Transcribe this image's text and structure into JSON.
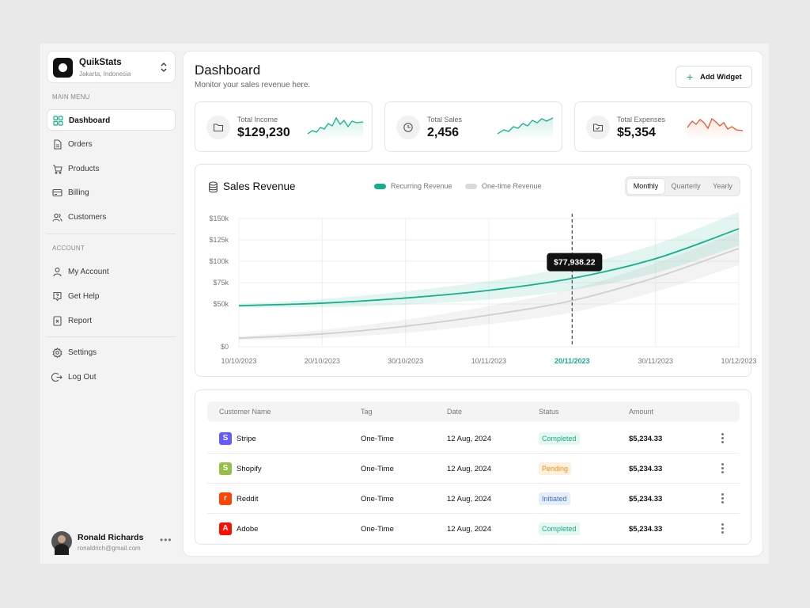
{
  "brand": {
    "name": "QuikStats",
    "location": "Jakarta, Indonesia"
  },
  "sidebar": {
    "main_menu_label": "MAIN MENU",
    "main_items": [
      {
        "label": "Dashboard",
        "icon": "grid-icon",
        "active": true
      },
      {
        "label": "Orders",
        "icon": "document-icon"
      },
      {
        "label": "Products",
        "icon": "cart-icon"
      },
      {
        "label": "Billing",
        "icon": "card-icon"
      },
      {
        "label": "Customers",
        "icon": "users-icon"
      }
    ],
    "account_label": "ACCOUNT",
    "account_items": [
      {
        "label": "My Account",
        "icon": "user-icon"
      },
      {
        "label": "Get Help",
        "icon": "help-icon"
      },
      {
        "label": "Report",
        "icon": "report-icon"
      }
    ],
    "settings_label": "Settings",
    "logout_label": "Log Out"
  },
  "user": {
    "name": "Ronald Richards",
    "email": "ronaldrich@gmail.com"
  },
  "header": {
    "title": "Dashboard",
    "subtitle": "Monitor your sales revenue here.",
    "add_widget_label": "Add Widget"
  },
  "stats": [
    {
      "label": "Total Income",
      "value": "$129,230",
      "icon": "folder-icon",
      "color": "#13b08a"
    },
    {
      "label": "Total Sales",
      "value": "2,456",
      "icon": "pie-icon",
      "color": "#13b08a"
    },
    {
      "label": "Total Expenses",
      "value": "$5,354",
      "icon": "wallet-icon",
      "color": "#e4572e"
    }
  ],
  "chart": {
    "title": "Sales Revenue",
    "legend": [
      {
        "label": "Recurring Revenue",
        "color": "#13b08a"
      },
      {
        "label": "One-time Revenue",
        "color": "#d9d9d9"
      }
    ],
    "periods": [
      "Monthly",
      "Quarterly",
      "Yearly"
    ],
    "active_period": "Monthly",
    "tooltip": "$77,938.22",
    "highlight_date": "20/11/2023"
  },
  "chart_data": {
    "type": "line",
    "title": "Sales Revenue",
    "x": [
      "10/10/2023",
      "20/10/2023",
      "30/10/2023",
      "10/11/2023",
      "20/11/2023",
      "30/11/2023",
      "10/12/2023"
    ],
    "y_ticks": [
      "$0",
      "$50k",
      "$75k",
      "$100k",
      "$125k",
      "$150k"
    ],
    "ylim": [
      0,
      150000
    ],
    "series": [
      {
        "name": "Recurring Revenue",
        "values": [
          48000,
          51000,
          57000,
          66000,
          80000,
          103000,
          138000
        ]
      },
      {
        "name": "One-time Revenue",
        "values": [
          10000,
          15000,
          24000,
          37000,
          54000,
          81000,
          115000
        ]
      }
    ]
  },
  "table": {
    "columns": [
      "Customer Name",
      "Tag",
      "Date",
      "Status",
      "Amount"
    ],
    "rows": [
      {
        "name": "Stripe",
        "logo": "S",
        "logo_color": "#635bff",
        "tag": "One-Time",
        "date": "12 Aug, 2024",
        "status": "Completed",
        "amount": "$5,234.33"
      },
      {
        "name": "Shopify",
        "logo": "S",
        "logo_color": "#95bf47",
        "tag": "One-Time",
        "date": "12 Aug, 2024",
        "status": "Pending",
        "amount": "$5,234.33"
      },
      {
        "name": "Reddit",
        "logo": "r",
        "logo_color": "#ff4500",
        "tag": "One-Time",
        "date": "12 Aug, 2024",
        "status": "Initiated",
        "amount": "$5,234.33"
      },
      {
        "name": "Adobe",
        "logo": "A",
        "logo_color": "#fa0f00",
        "tag": "One-Time",
        "date": "12 Aug, 2024",
        "status": "Completed",
        "amount": "$5,234.33"
      }
    ],
    "status_colors": {
      "Completed": {
        "bg": "#e6f7f1",
        "fg": "#13b08a"
      },
      "Pending": {
        "bg": "#fdf0dc",
        "fg": "#e8941a"
      },
      "Initiated": {
        "bg": "#e6eefb",
        "fg": "#3a72d8"
      }
    }
  }
}
